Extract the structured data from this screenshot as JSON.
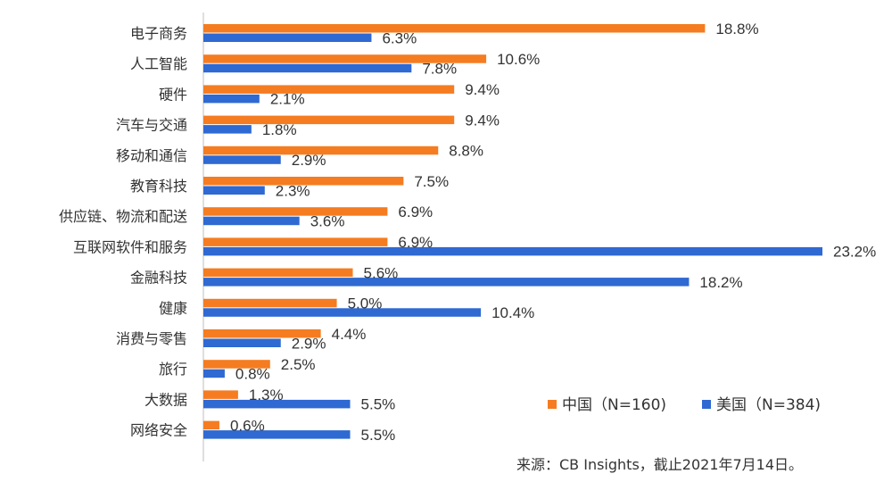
{
  "chart_data": {
    "type": "bar",
    "orientation": "horizontal",
    "categories": [
      "电子商务",
      "人工智能",
      "硬件",
      "汽车与交通",
      "移动和通信",
      "教育科技",
      "供应链、物流和配送",
      "互联网软件和服务",
      "金融科技",
      "健康",
      "消费与零售",
      "旅行",
      "大数据",
      "网络安全"
    ],
    "series": [
      {
        "name": "中国（N=160)",
        "color": "#F57C20",
        "values": [
          18.8,
          10.6,
          9.4,
          9.4,
          8.8,
          7.5,
          6.9,
          6.9,
          5.6,
          5.0,
          4.4,
          2.5,
          1.3,
          0.6
        ],
        "labels": [
          "18.8%",
          "10.6%",
          "9.4%",
          "9.4%",
          "8.8%",
          "7.5%",
          "6.9%",
          "6.9%",
          "5.6%",
          "5.0%",
          "4.4%",
          "2.5%",
          "1.3%",
          "0.6%"
        ]
      },
      {
        "name": "美国（N=384)",
        "color": "#2F69D2",
        "values": [
          6.3,
          7.8,
          2.1,
          1.8,
          2.9,
          2.3,
          3.6,
          23.2,
          18.2,
          10.4,
          2.9,
          0.8,
          5.5,
          5.5
        ],
        "labels": [
          "6.3%",
          "7.8%",
          "2.1%",
          "1.8%",
          "2.9%",
          "2.3%",
          "3.6%",
          "23.2%",
          "18.2%",
          "10.4%",
          "2.9%",
          "0.8%",
          "5.5%",
          "5.5%"
        ]
      }
    ],
    "xlim": [
      0,
      23.2
    ],
    "grid": false,
    "legend_position": "bottom-right"
  },
  "source_note": "来源：CB Insights，截止2021年7月14日。"
}
